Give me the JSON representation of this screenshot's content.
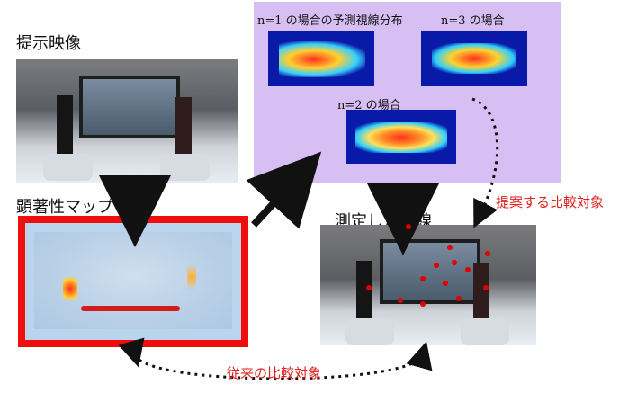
{
  "labels": {
    "input_video": "提示映像",
    "saliency_map": "顕著性マップ",
    "measured_gaze": "測定した視線",
    "proposed_comparison": "提案する比較対象",
    "conventional_comparison": "従来の比較対象"
  },
  "heatmaps": {
    "n1": "n=1 の場合の予測視線分布",
    "n3": "n=3 の場合",
    "n2": "n=2 の場合"
  },
  "colors": {
    "purple_panel": "#d8bff3",
    "red_frame": "#f00d0d",
    "red_text": "#e0201c",
    "gaze_dot": "#e00000",
    "heat_blue": "#0a1aa8"
  }
}
